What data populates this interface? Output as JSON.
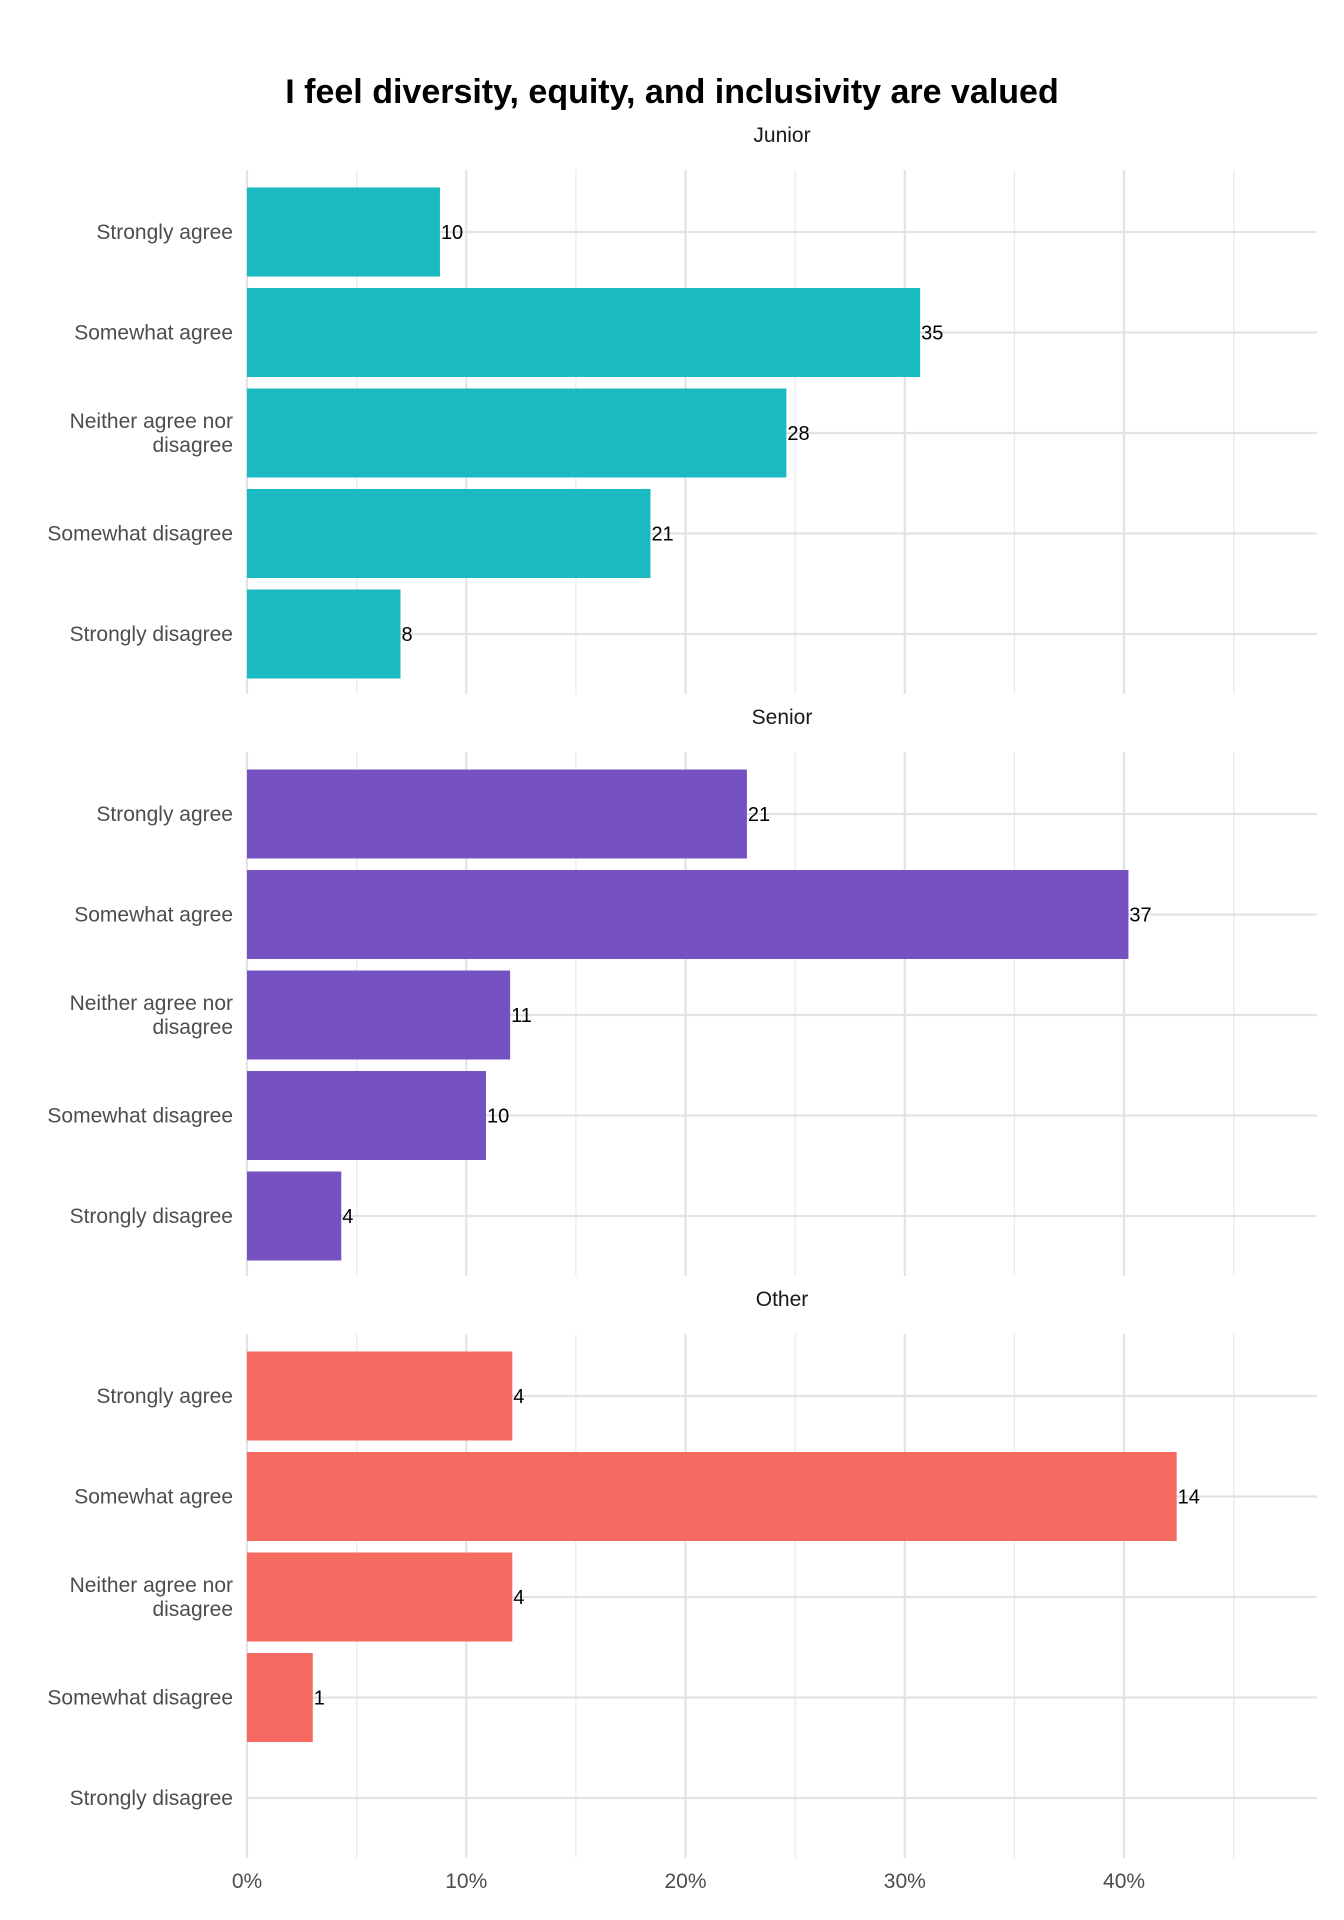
{
  "chart_data": {
    "type": "bar",
    "orientation": "horizontal",
    "title": "I feel diversity, equity, and inclusivity are valued",
    "categories": [
      "Strongly agree",
      "Somewhat agree",
      "Neither agree nor\ndisagree",
      "Somewhat disagree",
      "Strongly disagree"
    ],
    "x_ticks": [
      "0%",
      "10%",
      "20%",
      "30%",
      "40%"
    ],
    "xlim": [
      0,
      48.8
    ],
    "grid": true,
    "facets": [
      {
        "name": "Junior",
        "color": "#1ABAC2",
        "percent": [
          8.8,
          30.7,
          24.6,
          18.4,
          7.0
        ],
        "labels": [
          "10",
          "35",
          "28",
          "21",
          "8"
        ]
      },
      {
        "name": "Senior",
        "color": "#7551C2",
        "percent": [
          22.8,
          40.2,
          12.0,
          10.9,
          4.3
        ],
        "labels": [
          "21",
          "37",
          "11",
          "10",
          "4"
        ]
      },
      {
        "name": "Other",
        "color": "#F56A61",
        "percent": [
          12.1,
          42.4,
          12.1,
          3.0,
          null
        ],
        "labels": [
          "4",
          "14",
          "4",
          "1",
          null
        ]
      }
    ]
  }
}
